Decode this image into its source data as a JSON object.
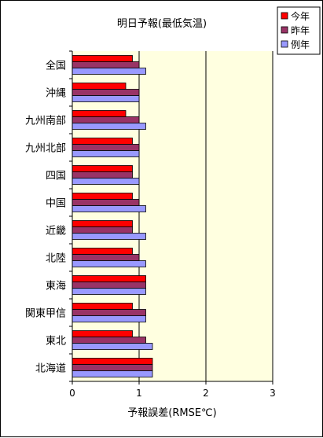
{
  "chart_data": {
    "type": "bar",
    "orientation": "horizontal",
    "title": "明日予報(最低気温)",
    "xlabel": "予報誤差(RMSE℃)",
    "ylabel": "",
    "xlim": [
      0,
      3
    ],
    "xticks": [
      "0",
      "1",
      "2",
      "3"
    ],
    "grid": true,
    "legend_position": "top-right",
    "plot_background": "#ffffe0",
    "categories": [
      "全国",
      "沖縄",
      "九州南部",
      "九州北部",
      "四国",
      "中国",
      "近畿",
      "北陸",
      "東海",
      "関東甲信",
      "東北",
      "北海道"
    ],
    "series": [
      {
        "name": "今年",
        "color": "#ff0000",
        "values": [
          0.9,
          0.8,
          0.8,
          0.9,
          0.9,
          0.9,
          0.9,
          0.9,
          1.1,
          0.9,
          0.9,
          1.2
        ]
      },
      {
        "name": "昨年",
        "color": "#993366",
        "values": [
          1.0,
          1.0,
          1.0,
          1.0,
          0.9,
          1.0,
          0.9,
          1.0,
          1.1,
          1.1,
          1.1,
          1.2
        ]
      },
      {
        "name": "例年",
        "color": "#9999ff",
        "values": [
          1.1,
          1.0,
          1.1,
          1.0,
          1.0,
          1.1,
          1.1,
          1.1,
          1.1,
          1.1,
          1.2,
          1.2
        ]
      }
    ]
  }
}
